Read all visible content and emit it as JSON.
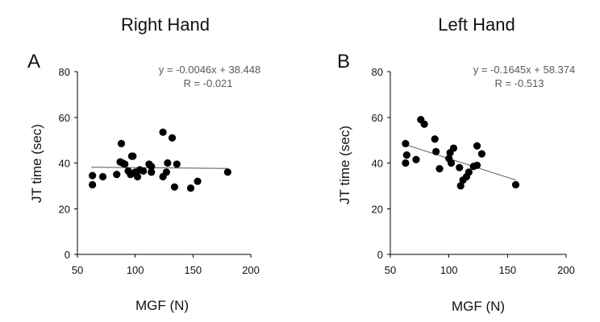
{
  "chart_data": [
    {
      "type": "scatter",
      "panel": "A",
      "title": "Right Hand",
      "xlabel": "MGF (N)",
      "ylabel": "JT time (sec)",
      "xlim": [
        50,
        200
      ],
      "ylim": [
        0,
        80
      ],
      "xticks": [
        "50",
        "100",
        "150",
        "200"
      ],
      "yticks": [
        "0",
        "20",
        "40",
        "60",
        "80"
      ],
      "grid": false,
      "annotation": {
        "equation": "y = -0.0046x + 38.448",
        "r": "R =  -0.021"
      },
      "trendline": {
        "slope": -0.0046,
        "intercept": 38.448,
        "x_range": [
          62,
          180
        ]
      },
      "points": [
        {
          "x": 63,
          "y": 34.5
        },
        {
          "x": 63,
          "y": 30.5
        },
        {
          "x": 72,
          "y": 34
        },
        {
          "x": 84,
          "y": 35
        },
        {
          "x": 87,
          "y": 40.5
        },
        {
          "x": 88,
          "y": 48.5
        },
        {
          "x": 89,
          "y": 40
        },
        {
          "x": 91,
          "y": 39.5
        },
        {
          "x": 94,
          "y": 36.5
        },
        {
          "x": 96,
          "y": 35
        },
        {
          "x": 97,
          "y": 43
        },
        {
          "x": 98,
          "y": 43
        },
        {
          "x": 100,
          "y": 36
        },
        {
          "x": 102,
          "y": 34
        },
        {
          "x": 104,
          "y": 37
        },
        {
          "x": 107,
          "y": 36.5
        },
        {
          "x": 112,
          "y": 39.5
        },
        {
          "x": 114,
          "y": 36
        },
        {
          "x": 114,
          "y": 38.5
        },
        {
          "x": 124,
          "y": 34
        },
        {
          "x": 124,
          "y": 53.5
        },
        {
          "x": 127,
          "y": 36
        },
        {
          "x": 128,
          "y": 40
        },
        {
          "x": 132,
          "y": 51
        },
        {
          "x": 134,
          "y": 29.5
        },
        {
          "x": 136,
          "y": 39.5
        },
        {
          "x": 148,
          "y": 29
        },
        {
          "x": 154,
          "y": 32
        },
        {
          "x": 180,
          "y": 36
        }
      ]
    },
    {
      "type": "scatter",
      "panel": "B",
      "title": "Left Hand",
      "xlabel": "MGF (N)",
      "ylabel": "JT time (sec)",
      "xlim": [
        50,
        200
      ],
      "ylim": [
        0,
        80
      ],
      "xticks": [
        "50",
        "100",
        "150",
        "200"
      ],
      "yticks": [
        "0",
        "20",
        "40",
        "60",
        "80"
      ],
      "grid": false,
      "annotation": {
        "equation": "y = -0.1645x + 58.374",
        "r": "R =  -0.513"
      },
      "trendline": {
        "slope": -0.1645,
        "intercept": 58.374,
        "x_range": [
          63,
          157
        ]
      },
      "points": [
        {
          "x": 63,
          "y": 48.5
        },
        {
          "x": 64,
          "y": 43.5
        },
        {
          "x": 63,
          "y": 40
        },
        {
          "x": 72,
          "y": 41.5
        },
        {
          "x": 76,
          "y": 59
        },
        {
          "x": 79,
          "y": 57
        },
        {
          "x": 88,
          "y": 50.5
        },
        {
          "x": 89,
          "y": 45
        },
        {
          "x": 92,
          "y": 37.5
        },
        {
          "x": 100,
          "y": 42
        },
        {
          "x": 101,
          "y": 44.5
        },
        {
          "x": 102,
          "y": 40
        },
        {
          "x": 104,
          "y": 46.5
        },
        {
          "x": 109,
          "y": 38
        },
        {
          "x": 110,
          "y": 30
        },
        {
          "x": 112,
          "y": 32.5
        },
        {
          "x": 115,
          "y": 34
        },
        {
          "x": 117,
          "y": 36
        },
        {
          "x": 121,
          "y": 38.5
        },
        {
          "x": 124,
          "y": 47.5
        },
        {
          "x": 124,
          "y": 39
        },
        {
          "x": 128,
          "y": 44
        },
        {
          "x": 157,
          "y": 30.5
        }
      ]
    }
  ]
}
